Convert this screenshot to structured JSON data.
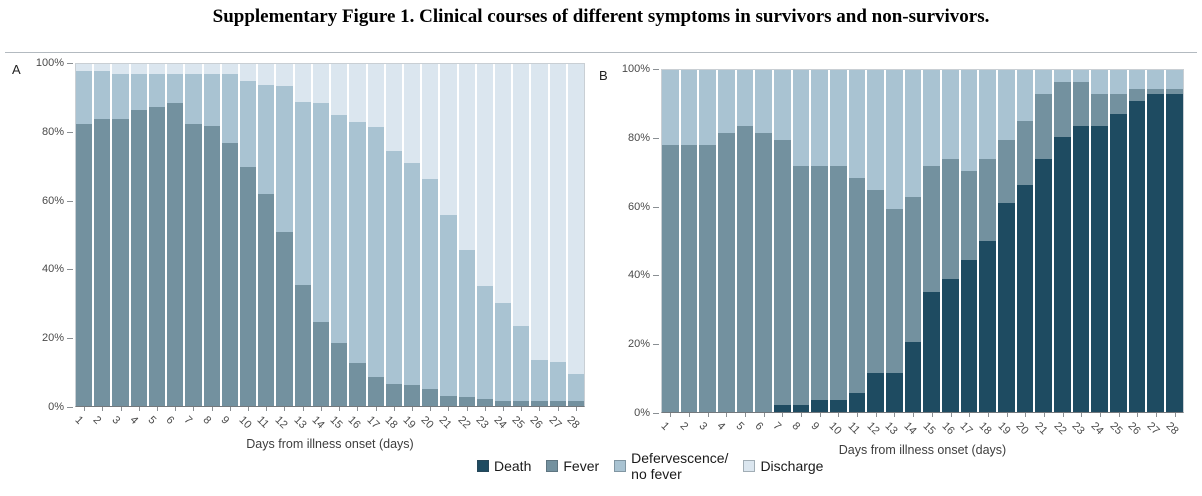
{
  "figure": {
    "title": "Supplementary Figure 1. Clinical courses of different symptoms in survivors and non-survivors."
  },
  "colors": {
    "death": "#1e4b61",
    "fever": "#73919f",
    "defervescence": "#a9c3d2",
    "discharge": "#dbe6ef"
  },
  "legend": {
    "items": [
      {
        "key": "death",
        "label": "Death",
        "color": "#1e4b61"
      },
      {
        "key": "fever",
        "label": "Fever",
        "color": "#73919f"
      },
      {
        "key": "defervescence-no-fever",
        "label": "Defervescence/\nno fever",
        "color": "#a9c3d2"
      },
      {
        "key": "discharge",
        "label": "Discharge",
        "color": "#dbe6ef"
      }
    ]
  },
  "chart_data": [
    {
      "panel": "A",
      "type": "bar",
      "stacked": true,
      "group": "survivors",
      "xlabel": "Days from illness onset (days)",
      "ylim": [
        0,
        100
      ],
      "y_ticks": [
        "100%",
        "80%",
        "60%",
        "40%",
        "20%",
        "0%"
      ],
      "categories": [
        "1",
        "2",
        "3",
        "4",
        "5",
        "6",
        "7",
        "8",
        "9",
        "10",
        "11",
        "12",
        "13",
        "14",
        "15",
        "16",
        "17",
        "18",
        "19",
        "20",
        "21",
        "22",
        "23",
        "24",
        "25",
        "26",
        "27",
        "28"
      ],
      "series": [
        {
          "name": "Fever",
          "color": "#73919f",
          "values": [
            82.5,
            84,
            84,
            86.5,
            87.5,
            88.5,
            82.5,
            82,
            77,
            70,
            62,
            51,
            35.5,
            24.5,
            18.5,
            12.5,
            8.5,
            6.5,
            6,
            5,
            3,
            2.5,
            2,
            1.5,
            1.5,
            1.5,
            1.5,
            1.5
          ]
        },
        {
          "name": "Defervescence/no fever",
          "color": "#a9c3d2",
          "values": [
            15.5,
            14,
            13,
            10.5,
            9.5,
            8.5,
            14.5,
            15,
            20,
            25,
            32,
            42.5,
            53.5,
            64,
            66.5,
            70.5,
            73,
            68,
            65,
            61.5,
            53,
            43,
            33,
            28.5,
            22,
            12,
            11.5,
            8
          ]
        },
        {
          "name": "Discharge",
          "color": "#dbe6ef",
          "values": [
            2,
            2,
            3,
            3,
            3,
            3,
            3,
            3,
            3,
            5,
            6,
            6.5,
            11,
            11.5,
            15,
            17,
            18.5,
            25.5,
            29,
            33.5,
            44,
            54.5,
            65,
            70,
            76.5,
            86.5,
            87,
            90.5
          ]
        }
      ]
    },
    {
      "panel": "B",
      "type": "bar",
      "stacked": true,
      "group": "non-survivors",
      "xlabel": "Days from illness onset (days)",
      "ylim": [
        0,
        100
      ],
      "y_ticks": [
        "100%",
        "80%",
        "60%",
        "40%",
        "20%",
        "0%"
      ],
      "categories": [
        "1",
        "2",
        "3",
        "4",
        "5",
        "6",
        "7",
        "8",
        "9",
        "10",
        "11",
        "12",
        "13",
        "14",
        "15",
        "16",
        "17",
        "18",
        "19",
        "20",
        "21",
        "22",
        "23",
        "24",
        "25",
        "26",
        "27",
        "28"
      ],
      "series": [
        {
          "name": "Death",
          "color": "#1e4b61",
          "values": [
            0,
            0,
            0,
            0,
            0,
            0,
            2,
            2,
            3.5,
            3.5,
            5.5,
            11.5,
            11.5,
            20.5,
            35,
            39,
            44.5,
            50,
            61,
            66.5,
            74,
            80.5,
            83.5,
            83.5,
            87,
            91,
            93,
            93
          ]
        },
        {
          "name": "Fever",
          "color": "#73919f",
          "values": [
            78,
            78,
            78,
            81.5,
            83.5,
            81.5,
            77.5,
            70,
            68.5,
            68.5,
            63,
            53.5,
            48,
            42.5,
            37,
            35,
            26,
            24,
            18.5,
            18.5,
            19,
            16,
            13,
            9.5,
            6,
            3.5,
            1.5,
            1.5
          ]
        },
        {
          "name": "Defervescence/no fever",
          "color": "#a9c3d2",
          "values": [
            22,
            22,
            22,
            18.5,
            16.5,
            18.5,
            20.5,
            28,
            28,
            28,
            31.5,
            35,
            40.5,
            37,
            28,
            26,
            29.5,
            26,
            20.5,
            15,
            7,
            3.5,
            3.5,
            7,
            7,
            5.5,
            5.5,
            5.5
          ]
        }
      ]
    }
  ]
}
